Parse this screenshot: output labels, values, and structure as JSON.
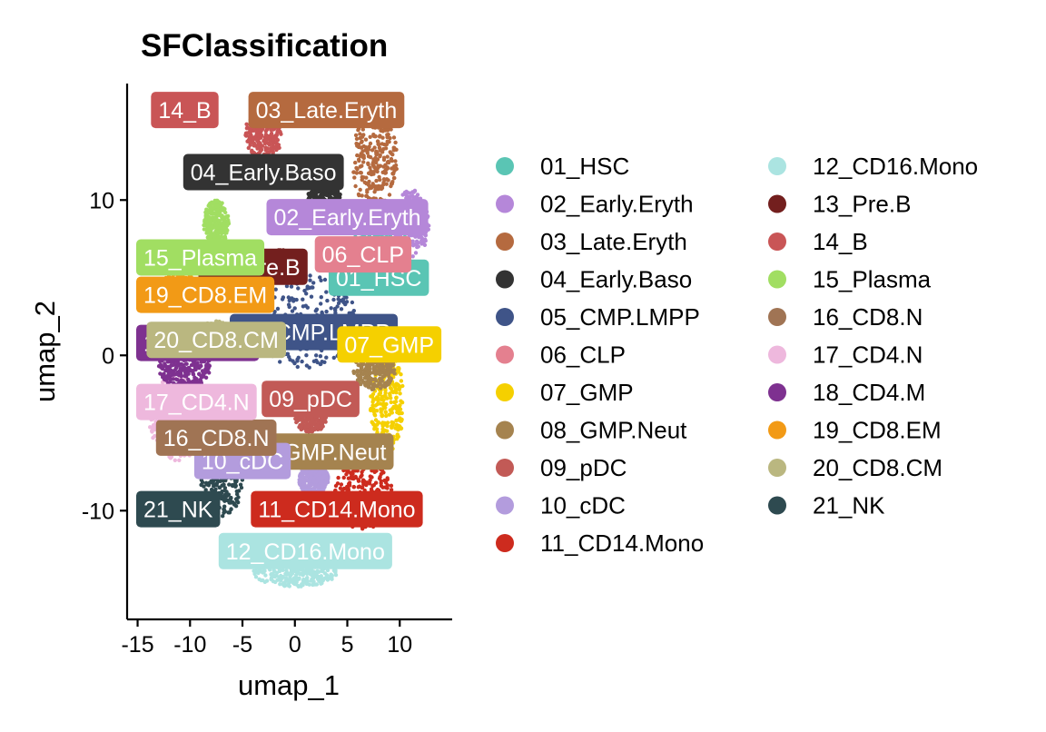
{
  "chart_data": {
    "type": "scatter",
    "title": "SFClassification",
    "xlabel": "umap_1",
    "ylabel": "umap_2",
    "xlim": [
      -16,
      15
    ],
    "ylim": [
      -17,
      17.5
    ],
    "xticks": [
      -15,
      -10,
      -5,
      0,
      5,
      10
    ],
    "yticks": [
      -10,
      0,
      10
    ],
    "xtick_labels": [
      "-15",
      "-10",
      "-5",
      "0",
      "5",
      "10"
    ],
    "ytick_labels": [
      "-10",
      "0",
      "10"
    ],
    "grid": false,
    "legend_position": "right",
    "legend_columns": 2,
    "series": [
      {
        "name": "01_HSC",
        "color": "#5AC5B4",
        "cx": 8.0,
        "cy": 7.2,
        "rx": 2.6,
        "ry": 1.6,
        "label_x": 8.0,
        "label_y": 5.0
      },
      {
        "name": "02_Early.Eryth",
        "color": "#B587D9",
        "cx": 11.0,
        "cy": 8.5,
        "rx": 1.8,
        "ry": 2.2,
        "label_x": 5.0,
        "label_y": 8.9
      },
      {
        "name": "03_Late.Eryth",
        "color": "#B56A3F",
        "cx": 7.6,
        "cy": 12.6,
        "rx": 2.2,
        "ry": 3.2,
        "label_x": 3.0,
        "label_y": 15.8
      },
      {
        "name": "04_Early.Baso",
        "color": "#333333",
        "cx": 2.8,
        "cy": 10.0,
        "rx": 1.6,
        "ry": 1.2,
        "label_x": -3.0,
        "label_y": 11.8
      },
      {
        "name": "05_CMP.LMPP",
        "color": "#3F5488",
        "cx": 1.0,
        "cy": 2.2,
        "rx": 5.0,
        "ry": 3.0,
        "label_x": 1.8,
        "label_y": 1.5
      },
      {
        "name": "06_CLP",
        "color": "#E4808F",
        "cx": 6.5,
        "cy": 6.5,
        "rx": 1.5,
        "ry": 0.9,
        "label_x": 6.5,
        "label_y": 6.5
      },
      {
        "name": "07_GMP",
        "color": "#F5D000",
        "cx": 8.8,
        "cy": -3.0,
        "rx": 1.6,
        "ry": 3.2,
        "label_x": 9.0,
        "label_y": 0.7
      },
      {
        "name": "08_GMP.Neut",
        "color": "#A5834F",
        "cx": 7.6,
        "cy": -1.0,
        "rx": 2.0,
        "ry": 1.2,
        "label_x": 2.0,
        "label_y": -6.2
      },
      {
        "name": "09_pDC",
        "color": "#C25A56",
        "cx": 1.5,
        "cy": -4.0,
        "rx": 1.5,
        "ry": 1.0,
        "label_x": 1.5,
        "label_y": -2.8
      },
      {
        "name": "10_cDC",
        "color": "#B39CDD",
        "cx": 1.8,
        "cy": -8.0,
        "rx": 1.4,
        "ry": 1.0,
        "label_x": -5.0,
        "label_y": -6.8
      },
      {
        "name": "11_CD14.Mono",
        "color": "#CD2B1E",
        "cx": 6.5,
        "cy": -9.0,
        "rx": 2.8,
        "ry": 2.2,
        "label_x": 4.0,
        "label_y": -9.9
      },
      {
        "name": "12_CD16.Mono",
        "color": "#ABE4E1",
        "cx": 0.0,
        "cy": -14.0,
        "rx": 4.0,
        "ry": 0.9,
        "label_x": 1.0,
        "label_y": -12.6
      },
      {
        "name": "13_Pre.B",
        "color": "#731F1E",
        "cx": -1.5,
        "cy": 5.8,
        "rx": 2.0,
        "ry": 1.0,
        "label_x": -4.0,
        "label_y": 5.7
      },
      {
        "name": "14_B",
        "color": "#C95556",
        "cx": -3.0,
        "cy": 14.2,
        "rx": 1.8,
        "ry": 1.6,
        "label_x": -10.5,
        "label_y": 15.8
      },
      {
        "name": "15_Plasma",
        "color": "#A1DE62",
        "cx": -7.5,
        "cy": 8.5,
        "rx": 1.2,
        "ry": 1.5,
        "label_x": -10.5,
        "label_y": 6.3
      },
      {
        "name": "16_CD8.N",
        "color": "#A07454",
        "cx": -7.0,
        "cy": -4.5,
        "rx": 2.2,
        "ry": 1.5,
        "label_x": -7.5,
        "label_y": -5.3
      },
      {
        "name": "17_CD4.N",
        "color": "#EEB8DD",
        "cx": -11.0,
        "cy": -4.0,
        "rx": 3.0,
        "ry": 2.8,
        "label_x": -10.0,
        "label_y": -3.0
      },
      {
        "name": "18_CD4.M",
        "color": "#7E3190",
        "cx": -10.5,
        "cy": -0.8,
        "rx": 2.5,
        "ry": 1.3,
        "label_x": -10.0,
        "label_y": 0.8
      },
      {
        "name": "19_CD8.EM",
        "color": "#F29A16",
        "cx": -11.0,
        "cy": 4.0,
        "rx": 2.5,
        "ry": 1.2,
        "label_x": -11.0,
        "label_y": 3.9
      },
      {
        "name": "20_CD8.CM",
        "color": "#BAB780",
        "cx": -7.5,
        "cy": 1.0,
        "rx": 2.2,
        "ry": 1.2,
        "label_x": -7.5,
        "label_y": 1.0
      },
      {
        "name": "21_NK",
        "color": "#2E4A50",
        "cx": -7.0,
        "cy": -8.0,
        "rx": 2.0,
        "ry": 2.5,
        "label_x": -11.5,
        "label_y": -9.9
      }
    ]
  },
  "plot_labels": {
    "title": "SFClassification",
    "xlabel": "umap_1",
    "ylabel": "umap_2"
  }
}
